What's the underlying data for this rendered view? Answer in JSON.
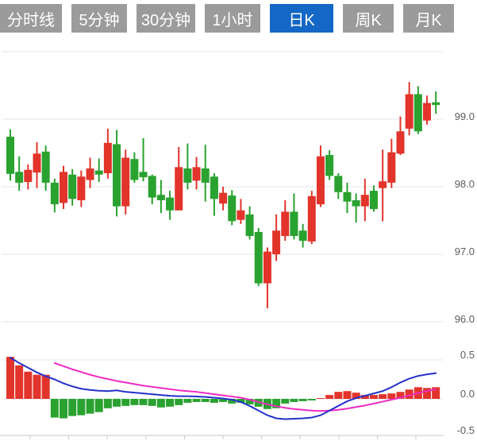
{
  "tabs": [
    {
      "label": "分时线",
      "active": false
    },
    {
      "label": "5分钟",
      "active": false
    },
    {
      "label": "30分钟",
      "active": false
    },
    {
      "label": "1小时",
      "active": false
    },
    {
      "label": "日K",
      "active": true
    },
    {
      "label": "周K",
      "active": false
    },
    {
      "label": "月K",
      "active": false
    }
  ],
  "colors": {
    "up": "#e2342b",
    "down": "#29a22f",
    "dif_line": "#2431c8",
    "dea_line": "#ef2bc3",
    "grid": "#e4e4e4",
    "axis_line": "#c9c9c9",
    "axis_label": "#5b5b5b",
    "tab_bg": "#9b9b9b",
    "tab_active_bg": "#1467c4",
    "tab_text": "#ffffff"
  },
  "chart_data": {
    "type": "candlestick-with-macd",
    "title": "",
    "legend": "none",
    "grid": true,
    "candle_pane": {
      "ylim": [
        95.9,
        100.0
      ],
      "y_ticks": [
        {
          "label": "",
          "value": 100.0
        },
        {
          "label": "99.0",
          "value": 99.0
        },
        {
          "label": "98.0",
          "value": 98.0
        },
        {
          "label": "97.0",
          "value": 97.0
        },
        {
          "label": "96.0",
          "value": 96.0
        }
      ]
    },
    "macd_pane": {
      "ylim": [
        -0.55,
        0.55
      ],
      "y_ticks": [
        {
          "label": "0.5",
          "value": 0.5
        },
        {
          "label": "0.0",
          "value": 0.0
        },
        {
          "label": "-0.5",
          "value": -0.5
        }
      ]
    },
    "candles_ohlc_format": [
      "open",
      "close",
      "low",
      "high"
    ],
    "candles": [
      [
        98.74,
        98.19,
        98.09,
        98.85
      ],
      [
        98.22,
        98.06,
        97.94,
        98.45
      ],
      [
        98.07,
        98.25,
        97.96,
        98.33
      ],
      [
        98.21,
        98.49,
        97.98,
        98.66
      ],
      [
        98.52,
        98.06,
        97.94,
        98.61
      ],
      [
        98.06,
        97.74,
        97.62,
        98.12
      ],
      [
        97.76,
        98.22,
        97.67,
        98.31
      ],
      [
        98.18,
        97.82,
        97.72,
        98.26
      ],
      [
        97.8,
        98.15,
        97.7,
        98.24
      ],
      [
        98.1,
        98.27,
        97.98,
        98.43
      ],
      [
        98.24,
        98.18,
        98.07,
        98.42
      ],
      [
        98.2,
        98.65,
        98.12,
        98.86
      ],
      [
        98.63,
        97.71,
        97.56,
        98.84
      ],
      [
        97.71,
        98.43,
        97.59,
        98.55
      ],
      [
        98.41,
        98.1,
        98.06,
        98.51
      ],
      [
        98.22,
        98.14,
        98.08,
        98.72
      ],
      [
        98.16,
        97.84,
        97.74,
        98.18
      ],
      [
        97.88,
        97.8,
        97.61,
        98.1
      ],
      [
        97.84,
        97.65,
        97.51,
        97.94
      ],
      [
        97.65,
        98.29,
        97.65,
        98.59
      ],
      [
        98.27,
        98.06,
        97.96,
        98.64
      ],
      [
        98.09,
        98.29,
        97.96,
        98.44
      ],
      [
        98.27,
        98.06,
        97.78,
        98.62
      ],
      [
        98.15,
        97.82,
        97.57,
        98.2
      ],
      [
        97.75,
        97.91,
        97.65,
        98.0
      ],
      [
        97.87,
        97.49,
        97.43,
        97.95
      ],
      [
        97.51,
        97.65,
        97.45,
        97.82
      ],
      [
        97.59,
        97.27,
        97.22,
        97.71
      ],
      [
        97.33,
        96.57,
        96.53,
        97.39
      ],
      [
        96.57,
        97.04,
        96.2,
        97.1
      ],
      [
        97.0,
        97.35,
        96.9,
        97.59
      ],
      [
        97.27,
        97.63,
        97.2,
        97.8
      ],
      [
        97.63,
        97.27,
        97.22,
        97.9
      ],
      [
        97.35,
        97.2,
        97.1,
        97.45
      ],
      [
        97.19,
        97.86,
        97.15,
        97.94
      ],
      [
        97.74,
        98.45,
        97.7,
        98.61
      ],
      [
        98.47,
        98.16,
        98.1,
        98.54
      ],
      [
        98.16,
        97.92,
        97.82,
        98.2
      ],
      [
        97.92,
        97.78,
        97.61,
        98.06
      ],
      [
        97.8,
        97.71,
        97.47,
        97.9
      ],
      [
        97.71,
        97.88,
        97.49,
        98.12
      ],
      [
        97.94,
        97.67,
        97.63,
        98.02
      ],
      [
        97.98,
        98.08,
        97.49,
        98.55
      ],
      [
        98.06,
        98.51,
        97.98,
        98.71
      ],
      [
        98.49,
        98.82,
        98.47,
        99.04
      ],
      [
        98.86,
        99.37,
        98.76,
        99.55
      ],
      [
        99.37,
        98.82,
        98.78,
        99.49
      ],
      [
        98.98,
        99.24,
        98.92,
        99.35
      ],
      [
        99.25,
        99.21,
        99.08,
        99.41
      ]
    ],
    "macd": {
      "histogram": [
        0.54,
        0.43,
        0.35,
        0.31,
        0.31,
        -0.24,
        -0.25,
        -0.22,
        -0.21,
        -0.19,
        -0.17,
        -0.12,
        -0.1,
        -0.09,
        -0.08,
        -0.08,
        -0.09,
        -0.11,
        -0.1,
        -0.08,
        -0.05,
        -0.04,
        -0.04,
        -0.05,
        -0.04,
        -0.06,
        -0.05,
        -0.07,
        -0.1,
        -0.13,
        -0.12,
        -0.06,
        -0.04,
        -0.03,
        -0.02,
        0.01,
        0.05,
        0.09,
        0.1,
        0.08,
        0.05,
        0.05,
        0.06,
        0.07,
        0.09,
        0.12,
        0.15,
        0.14,
        0.15
      ],
      "dif": [
        0.53,
        0.46,
        0.4,
        0.34,
        0.29,
        0.25,
        0.2,
        0.16,
        0.13,
        0.115,
        0.105,
        0.1,
        0.11,
        0.09,
        0.08,
        0.07,
        0.06,
        0.05,
        0.04,
        0.035,
        0.035,
        0.03,
        0.025,
        0.015,
        0.005,
        -0.01,
        -0.04,
        -0.09,
        -0.15,
        -0.21,
        -0.25,
        -0.26,
        -0.255,
        -0.25,
        -0.24,
        -0.21,
        -0.15,
        -0.09,
        -0.03,
        0.01,
        0.04,
        0.07,
        0.1,
        0.15,
        0.21,
        0.26,
        0.295,
        0.315,
        0.33
      ],
      "dea": [
        null,
        null,
        null,
        null,
        null,
        0.46,
        0.42,
        0.38,
        0.345,
        0.31,
        0.28,
        0.255,
        0.23,
        0.21,
        0.19,
        0.17,
        0.155,
        0.14,
        0.125,
        0.11,
        0.1,
        0.09,
        0.075,
        0.06,
        0.045,
        0.03,
        0.015,
        -0.01,
        -0.04,
        -0.07,
        -0.095,
        -0.115,
        -0.13,
        -0.14,
        -0.15,
        -0.155,
        -0.15,
        -0.14,
        -0.125,
        -0.105,
        -0.085,
        -0.06,
        -0.035,
        -0.01,
        0.015,
        0.045,
        0.075,
        0.1,
        0.125
      ]
    }
  }
}
